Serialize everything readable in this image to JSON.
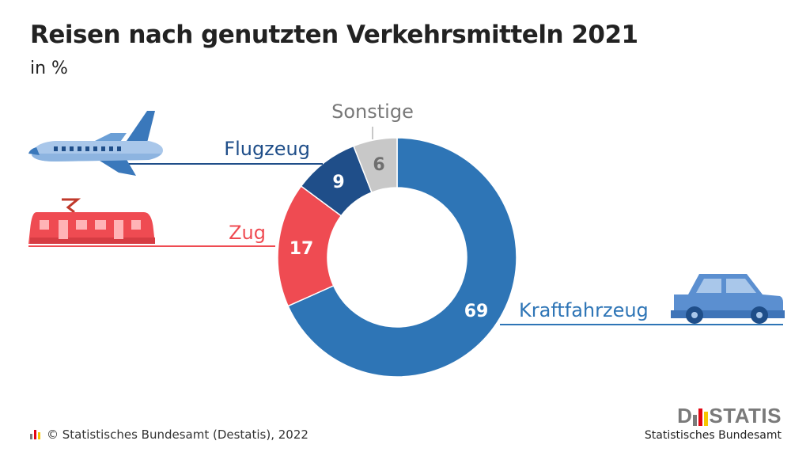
{
  "header": {
    "title": "Reisen nach genutzten Verkehrsmitteln 2021",
    "subtitle": "in %"
  },
  "colors": {
    "car": "#2e75b6",
    "plane": "#1f4e89",
    "train": "#ef4b52",
    "other": "#c8c8c8",
    "other_label": "#777777"
  },
  "chart_data": {
    "type": "pie",
    "variant": "donut",
    "title": "Reisen nach genutzten Verkehrsmitteln 2021",
    "unit": "in %",
    "categories": [
      "Kraftfahrzeug",
      "Zug",
      "Flugzeug",
      "Sonstige"
    ],
    "values": [
      69,
      17,
      9,
      6
    ],
    "icons": [
      "car-icon",
      "train-icon",
      "airplane-icon",
      ""
    ]
  },
  "footer": {
    "copyright": "© Statistisches Bundesamt (Destatis), 2022"
  },
  "logo": {
    "prefix": "D",
    "suffix": "STATIS",
    "tagline": "Statistisches Bundesamt"
  }
}
